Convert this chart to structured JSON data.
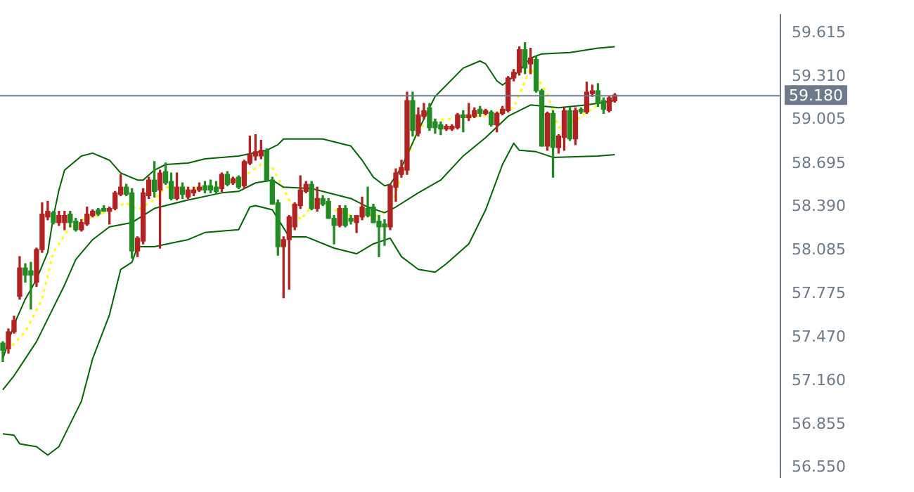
{
  "chart_data": {
    "type": "candlestick",
    "categories": [
      null,
      null,
      null,
      null,
      null,
      null,
      null,
      null,
      null,
      null,
      null,
      null,
      null,
      null,
      null,
      null,
      null,
      null,
      null,
      null,
      null,
      null,
      null,
      null,
      null,
      null,
      null,
      null,
      null,
      null,
      null,
      null,
      null,
      null,
      null,
      null,
      null,
      null,
      null,
      null,
      null,
      null,
      null,
      null,
      null,
      null,
      null,
      null,
      null,
      null,
      null,
      null,
      null,
      null,
      null,
      null,
      null,
      null,
      null,
      null,
      null,
      null,
      null,
      null,
      null,
      null,
      null,
      null,
      null,
      null,
      null,
      null,
      null,
      null,
      null,
      null,
      null,
      null,
      null,
      null,
      null,
      null,
      null,
      null,
      null,
      null,
      null,
      null,
      null,
      null,
      null,
      null,
      null,
      null,
      null,
      null,
      null,
      null,
      null,
      null,
      null,
      null,
      null,
      null,
      null,
      null,
      null,
      null,
      null,
      null,
      null,
      null,
      null,
      null,
      null,
      null,
      null,
      null,
      null,
      null,
      null,
      null,
      null,
      null,
      null,
      null,
      null,
      null,
      null,
      null,
      null,
      null,
      null,
      null,
      null,
      null,
      null,
      null,
      null
    ],
    "ohlc": [
      [
        57.43,
        57.44,
        57.3,
        57.38
      ],
      [
        57.39,
        57.53,
        57.36,
        57.51
      ],
      [
        57.51,
        57.62,
        57.5,
        57.59
      ],
      [
        57.76,
        58.04,
        57.74,
        57.96
      ],
      [
        57.96,
        57.99,
        57.86,
        57.91
      ],
      [
        57.94,
        58.0,
        57.67,
        57.91
      ],
      [
        57.86,
        58.1,
        57.83,
        58.09
      ],
      [
        58.09,
        58.42,
        58.07,
        58.34
      ],
      [
        58.32,
        58.43,
        58.3,
        58.36
      ],
      [
        58.35,
        58.36,
        58.27,
        58.28
      ],
      [
        58.28,
        58.36,
        58.26,
        58.33
      ],
      [
        58.28,
        58.36,
        58.23,
        58.33
      ],
      [
        58.34,
        58.36,
        58.25,
        58.28
      ],
      [
        58.29,
        58.31,
        58.22,
        58.23
      ],
      [
        58.23,
        58.3,
        58.22,
        58.28
      ],
      [
        58.27,
        58.39,
        58.26,
        58.34
      ],
      [
        58.33,
        58.37,
        58.32,
        58.36
      ],
      [
        58.37,
        58.38,
        58.33,
        58.34
      ],
      [
        58.38,
        58.4,
        58.36,
        58.36
      ],
      [
        58.36,
        58.39,
        58.27,
        58.38
      ],
      [
        58.38,
        58.5,
        58.37,
        58.49
      ],
      [
        58.48,
        58.62,
        58.47,
        58.53
      ],
      [
        58.53,
        58.55,
        58.47,
        58.48
      ],
      [
        58.49,
        58.52,
        58.03,
        58.08
      ],
      [
        58.08,
        58.18,
        58.04,
        58.17
      ],
      [
        58.15,
        58.52,
        58.13,
        58.49
      ],
      [
        58.47,
        58.6,
        58.45,
        58.58
      ],
      [
        58.58,
        58.71,
        58.46,
        58.5
      ],
      [
        58.51,
        58.65,
        58.1,
        58.63
      ],
      [
        58.64,
        58.7,
        58.55,
        58.56
      ],
      [
        58.57,
        58.63,
        58.44,
        58.45
      ],
      [
        58.45,
        58.63,
        58.44,
        58.53
      ],
      [
        58.53,
        58.56,
        58.45,
        58.48
      ],
      [
        58.46,
        58.53,
        58.45,
        58.51
      ],
      [
        58.49,
        58.53,
        58.47,
        58.51
      ],
      [
        58.51,
        58.56,
        58.5,
        58.53
      ],
      [
        58.54,
        58.57,
        58.49,
        58.51
      ],
      [
        58.54,
        58.58,
        58.49,
        58.51
      ],
      [
        58.53,
        58.57,
        58.48,
        58.5
      ],
      [
        58.52,
        58.63,
        58.5,
        58.62
      ],
      [
        58.62,
        58.64,
        58.54,
        58.55
      ],
      [
        58.56,
        58.6,
        58.55,
        58.59
      ],
      [
        58.6,
        58.61,
        58.52,
        58.53
      ],
      [
        58.54,
        58.72,
        58.52,
        58.71
      ],
      [
        58.7,
        58.89,
        58.69,
        58.76
      ],
      [
        58.75,
        58.9,
        58.72,
        58.78
      ],
      [
        58.75,
        58.86,
        58.73,
        58.79
      ],
      [
        58.79,
        58.8,
        58.57,
        58.58
      ],
      [
        58.58,
        58.6,
        58.41,
        58.41
      ],
      [
        58.42,
        58.44,
        58.05,
        58.11
      ],
      [
        58.11,
        58.18,
        57.75,
        58.16
      ],
      [
        58.16,
        58.33,
        57.81,
        58.32
      ],
      [
        58.25,
        58.42,
        58.23,
        58.41
      ],
      [
        58.4,
        58.61,
        58.38,
        58.51
      ],
      [
        58.5,
        58.57,
        58.49,
        58.55
      ],
      [
        58.55,
        58.57,
        58.37,
        58.38
      ],
      [
        58.38,
        58.53,
        58.36,
        58.45
      ],
      [
        58.45,
        58.47,
        58.4,
        58.41
      ],
      [
        58.43,
        58.45,
        58.31,
        58.31
      ],
      [
        58.31,
        58.33,
        58.13,
        58.26
      ],
      [
        58.26,
        58.4,
        58.25,
        58.38
      ],
      [
        58.38,
        58.4,
        58.25,
        58.26
      ],
      [
        58.31,
        58.33,
        58.27,
        58.29
      ],
      [
        58.28,
        58.33,
        58.21,
        58.33
      ],
      [
        58.32,
        58.46,
        58.3,
        58.39
      ],
      [
        58.38,
        58.53,
        58.32,
        58.33
      ],
      [
        58.39,
        58.41,
        58.28,
        58.28
      ],
      [
        58.29,
        58.33,
        58.04,
        58.25
      ],
      [
        58.27,
        58.3,
        58.12,
        58.25
      ],
      [
        58.25,
        58.55,
        58.23,
        58.54
      ],
      [
        58.53,
        58.66,
        58.43,
        58.63
      ],
      [
        58.62,
        58.72,
        58.6,
        58.67
      ],
      [
        58.65,
        59.2,
        58.62,
        59.14
      ],
      [
        59.14,
        59.2,
        58.89,
        58.93
      ],
      [
        58.91,
        59.09,
        58.89,
        59.04
      ],
      [
        59.03,
        59.12,
        59.01,
        59.07
      ],
      [
        59.09,
        59.12,
        58.93,
        58.95
      ],
      [
        58.99,
        59.01,
        58.91,
        58.95
      ],
      [
        58.97,
        58.99,
        58.9,
        58.94
      ],
      [
        58.94,
        58.97,
        58.93,
        58.96
      ],
      [
        58.94,
        58.97,
        58.93,
        58.96
      ],
      [
        58.95,
        59.05,
        58.94,
        59.04
      ],
      [
        59.04,
        59.07,
        58.92,
        59.02
      ],
      [
        59.02,
        59.12,
        59.0,
        59.04
      ],
      [
        59.03,
        59.09,
        59.02,
        59.07
      ],
      [
        59.08,
        59.1,
        59.03,
        59.05
      ],
      [
        59.05,
        59.08,
        59.04,
        59.07
      ],
      [
        59.06,
        59.07,
        58.96,
        58.97
      ],
      [
        58.97,
        59.06,
        58.92,
        59.05
      ],
      [
        59.05,
        59.1,
        59.04,
        59.08
      ],
      [
        59.07,
        59.31,
        59.06,
        59.3
      ],
      [
        59.3,
        59.36,
        59.28,
        59.34
      ],
      [
        59.34,
        59.52,
        59.32,
        59.5
      ],
      [
        59.5,
        59.55,
        59.33,
        59.37
      ],
      [
        59.4,
        59.51,
        59.33,
        59.44
      ],
      [
        59.43,
        59.45,
        59.2,
        59.21
      ],
      [
        59.21,
        59.22,
        58.82,
        58.82
      ],
      [
        58.82,
        59.06,
        58.79,
        59.05
      ],
      [
        59.05,
        59.07,
        58.6,
        58.81
      ],
      [
        58.81,
        58.9,
        58.77,
        58.89
      ],
      [
        58.88,
        59.09,
        58.79,
        59.07
      ],
      [
        59.07,
        59.09,
        58.86,
        58.87
      ],
      [
        58.87,
        59.09,
        58.83,
        59.07
      ],
      [
        59.08,
        59.09,
        59.05,
        59.06
      ],
      [
        59.06,
        59.27,
        59.05,
        59.2
      ],
      [
        59.19,
        59.25,
        59.17,
        59.21
      ],
      [
        59.21,
        59.26,
        59.1,
        59.12
      ],
      [
        59.14,
        59.16,
        59.05,
        59.08
      ],
      [
        59.07,
        59.17,
        59.06,
        59.16
      ],
      [
        59.14,
        59.19,
        59.13,
        59.18
      ],
      null,
      null,
      null,
      null,
      null,
      null,
      null,
      null,
      null,
      null,
      null,
      null,
      null,
      null,
      null,
      null,
      null,
      null,
      null,
      null,
      null,
      null,
      null,
      null,
      null,
      null,
      null,
      null,
      null
    ],
    "colors": [
      "#228b22",
      "#b22222",
      "#b22222",
      "#b22222",
      "#228b22",
      "#228b22",
      "#b22222",
      "#b22222",
      "#b22222",
      "#228b22",
      "#b22222",
      "#b22222",
      "#228b22",
      "#228b22",
      "#b22222",
      "#b22222",
      "#b22222",
      "#228b22",
      "#228b22",
      "#b22222",
      "#b22222",
      "#b22222",
      "#228b22",
      "#228b22",
      "#b22222",
      "#b22222",
      "#b22222",
      "#228b22",
      "#b22222",
      "#228b22",
      "#228b22",
      "#b22222",
      "#228b22",
      "#b22222",
      "#b22222",
      "#b22222",
      "#228b22",
      "#228b22",
      "#228b22",
      "#b22222",
      "#228b22",
      "#b22222",
      "#228b22",
      "#b22222",
      "#b22222",
      "#b22222",
      "#b22222",
      "#228b22",
      "#228b22",
      "#228b22",
      "#b22222",
      "#b22222",
      "#b22222",
      "#b22222",
      "#b22222",
      "#228b22",
      "#b22222",
      "#228b22",
      "#228b22",
      "#228b22",
      "#b22222",
      "#228b22",
      "#228b22",
      "#b22222",
      "#b22222",
      "#228b22",
      "#228b22",
      "#228b22",
      "#228b22",
      "#b22222",
      "#b22222",
      "#b22222",
      "#b22222",
      "#228b22",
      "#b22222",
      "#b22222",
      "#228b22",
      "#228b22",
      "#228b22",
      "#b22222",
      "#b22222",
      "#b22222",
      "#228b22",
      "#b22222",
      "#b22222",
      "#228b22",
      "#b22222",
      "#228b22",
      "#b22222",
      "#b22222",
      "#b22222",
      "#b22222",
      "#b22222",
      "#228b22",
      "#b22222",
      "#228b22",
      "#228b22",
      "#b22222",
      "#228b22",
      "#b22222",
      "#b22222",
      "#228b22",
      "#b22222",
      "#228b22",
      "#b22222",
      "#b22222",
      "#228b22",
      "#228b22",
      "#b22222",
      "#b22222",
      null,
      null,
      null,
      null,
      null,
      null,
      null,
      null,
      null,
      null,
      null,
      null,
      null,
      null,
      null,
      null,
      null,
      null,
      null,
      null,
      null,
      null,
      null,
      null,
      null,
      null,
      null,
      null,
      null
    ],
    "series": [
      {
        "type": "line",
        "color": "#006400",
        "values": [
          57.32,
          null,
          57.56,
          null,
          57.74,
          null,
          57.88,
          null,
          58.07,
          58.32,
          58.51,
          58.65,
          null,
          null,
          58.75,
          null,
          58.77,
          null,
          null,
          58.72,
          null,
          58.63,
          null,
          null,
          58.58,
          58.58,
          null,
          58.65,
          null,
          58.69,
          null,
          null,
          null,
          58.7,
          null,
          null,
          58.73,
          null,
          null,
          null,
          null,
          null,
          58.75,
          null,
          null,
          null,
          null,
          58.79,
          null,
          58.83,
          58.87,
          null,
          null,
          null,
          null,
          null,
          null,
          58.87,
          null,
          null,
          null,
          null,
          58.82,
          null,
          58.72,
          null,
          58.6,
          null,
          58.54,
          58.55,
          null,
          58.67,
          null,
          null,
          58.93,
          null,
          null,
          59.17,
          null,
          null,
          null,
          null,
          59.37,
          null,
          null,
          59.42,
          59.4,
          null,
          59.28,
          59.25,
          null,
          59.31,
          null,
          null,
          59.44,
          null,
          59.47,
          null,
          null,
          null,
          null,
          59.48,
          null,
          null,
          null,
          null,
          59.51,
          null,
          null,
          59.52,
          null,
          null,
          null,
          null,
          null,
          null,
          null,
          null,
          null,
          null,
          null,
          null,
          null,
          null,
          null,
          null,
          null,
          null,
          null,
          null,
          null,
          null,
          null,
          null,
          null,
          null,
          null,
          null,
          null
        ]
      },
      {
        "type": "line",
        "color": "#006400",
        "values": [
          57.1,
          null,
          57.2,
          null,
          57.32,
          null,
          57.44,
          null,
          57.6,
          null,
          null,
          57.84,
          null,
          58.02,
          null,
          null,
          58.16,
          null,
          null,
          58.25,
          null,
          null,
          null,
          58.28,
          null,
          null,
          null,
          58.38,
          null,
          null,
          null,
          null,
          null,
          58.44,
          null,
          null,
          null,
          null,
          null,
          58.49,
          null,
          null,
          58.5,
          null,
          null,
          58.56,
          null,
          null,
          58.58,
          null,
          58.53,
          null,
          null,
          null,
          null,
          58.52,
          null,
          null,
          null,
          null,
          null,
          null,
          58.45,
          null,
          null,
          58.39,
          null,
          null,
          58.35,
          null,
          58.39,
          null,
          null,
          null,
          58.49,
          null,
          null,
          null,
          58.58,
          null,
          null,
          null,
          58.75,
          null,
          null,
          null,
          58.88,
          null,
          null,
          null,
          59.03,
          null,
          null,
          null,
          59.11,
          null,
          null,
          null,
          null,
          59.09,
          null,
          null,
          null,
          null,
          59.11,
          null,
          null,
          null,
          null,
          59.14,
          null,
          null,
          null,
          null,
          null,
          null,
          null,
          null,
          null,
          null,
          null,
          null,
          null,
          null,
          null,
          null,
          null,
          null,
          null,
          null,
          null,
          null,
          null,
          null,
          null,
          null,
          null,
          null,
          null
        ]
      },
      {
        "type": "line",
        "color": "#006400",
        "values": [
          56.79,
          null,
          56.78,
          56.72,
          null,
          null,
          56.7,
          null,
          56.64,
          null,
          56.7,
          null,
          null,
          null,
          57.02,
          null,
          57.32,
          null,
          null,
          57.63,
          null,
          57.95,
          null,
          58.0,
          58.11,
          null,
          null,
          58.11,
          null,
          null,
          null,
          null,
          null,
          58.16,
          null,
          null,
          58.21,
          null,
          null,
          null,
          null,
          null,
          58.23,
          null,
          58.39,
          58.4,
          null,
          null,
          58.37,
          null,
          null,
          58.18,
          null,
          null,
          58.18,
          null,
          null,
          null,
          null,
          58.1,
          null,
          null,
          null,
          58.06,
          null,
          null,
          58.13,
          null,
          null,
          58.17,
          null,
          58.04,
          null,
          null,
          57.95,
          null,
          null,
          57.93,
          null,
          57.99,
          null,
          null,
          null,
          58.13,
          null,
          null,
          58.37,
          null,
          null,
          58.69,
          null,
          58.84,
          58.79,
          null,
          null,
          58.78,
          null,
          null,
          58.74,
          null,
          null,
          null,
          null,
          null,
          null,
          null,
          58.75,
          null,
          null,
          58.76,
          null,
          null,
          null,
          null,
          null,
          null,
          null,
          null,
          null,
          null,
          null,
          null,
          null,
          null,
          null,
          null,
          null,
          null,
          null,
          null,
          null,
          null,
          null,
          null,
          null,
          null,
          null,
          null,
          null
        ]
      },
      {
        "type": "line",
        "color": "#ffff00",
        "line_style": "dotted",
        "values": [
          57.34,
          null,
          null,
          null,
          57.51,
          null,
          null,
          57.74,
          null,
          58.07,
          null,
          null,
          58.25,
          null,
          58.3,
          null,
          null,
          58.33,
          null,
          58.37,
          null,
          null,
          58.42,
          null,
          58.37,
          null,
          null,
          58.44,
          null,
          58.53,
          null,
          null,
          null,
          null,
          58.52,
          null,
          null,
          null,
          null,
          58.55,
          null,
          null,
          58.58,
          null,
          null,
          null,
          58.69,
          null,
          58.67,
          null,
          null,
          58.44,
          null,
          58.3,
          null,
          null,
          58.44,
          null,
          null,
          58.37,
          null,
          null,
          null,
          58.32,
          null,
          null,
          null,
          58.33,
          null,
          58.38,
          null,
          null,
          null,
          null,
          58.95,
          null,
          null,
          59.0,
          null,
          null,
          null,
          null,
          59.02,
          null,
          null,
          null,
          null,
          59.04,
          null,
          null,
          null,
          59.09,
          null,
          null,
          59.37,
          null,
          null,
          59.19,
          null,
          58.95,
          null,
          null,
          59.0,
          null,
          null,
          null,
          59.11,
          null,
          null,
          59.14,
          null,
          null,
          null,
          null,
          null,
          null,
          null,
          null,
          null,
          null,
          null,
          null,
          null,
          null,
          null,
          null,
          null,
          null,
          null,
          null,
          null,
          null,
          null,
          null,
          null,
          null,
          null,
          null,
          null
        ]
      }
    ],
    "ylim": [
      56.485,
      59.745
    ],
    "yticks": [
      {
        "value": 56.55,
        "label": "56.550"
      },
      {
        "value": 56.855,
        "label": "56.855"
      },
      {
        "value": 57.16,
        "label": "57.160"
      },
      {
        "value": 57.47,
        "label": "57.470"
      },
      {
        "value": 57.775,
        "label": "57.775"
      },
      {
        "value": 58.085,
        "label": "58.085"
      },
      {
        "value": 58.39,
        "label": "58.390"
      },
      {
        "value": 58.695,
        "label": "58.695"
      },
      {
        "value": 59.005,
        "label": "59.005"
      },
      {
        "value": 59.31,
        "label": "59.310"
      },
      {
        "value": 59.615,
        "label": "59.615"
      }
    ],
    "ref_lines": [
      {
        "axis": "y",
        "value": 59.18,
        "label": "59.180",
        "color": "#6c7a89"
      }
    ],
    "tick_labels": "y"
  }
}
